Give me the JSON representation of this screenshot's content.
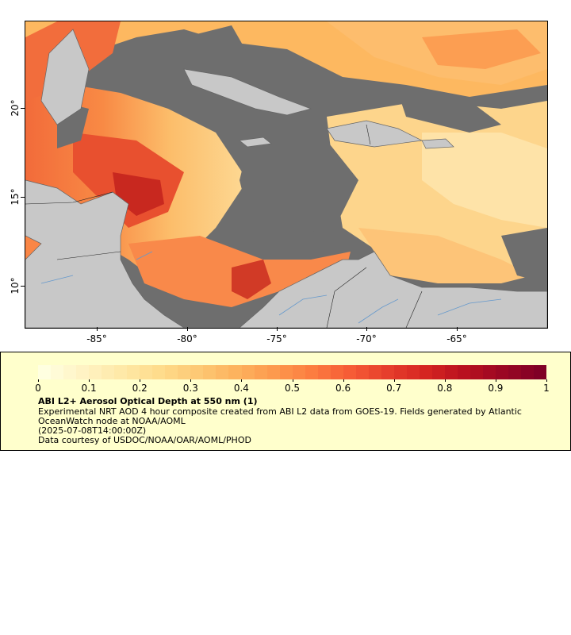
{
  "map": {
    "type": "choropleth raster map",
    "region": "Caribbean Sea and Central America",
    "lon_range": [
      -89,
      -60
    ],
    "lat_range": [
      8,
      25
    ],
    "lon_ticks": [
      "-85°",
      "-80°",
      "-75°",
      "-70°",
      "-65°"
    ],
    "lat_ticks": [
      "20°",
      "15°",
      "10°"
    ],
    "colors": {
      "land": "#c8c8c8",
      "no_data": "#6e6e6e",
      "coastline": "#666666",
      "rivers": "#6699cc",
      "borders": "#000000"
    }
  },
  "legend": {
    "colorbar_labels": [
      "0",
      "0.1",
      "0.2",
      "0.3",
      "0.4",
      "0.5",
      "0.6",
      "0.7",
      "0.8",
      "0.9",
      "1"
    ],
    "colorbar_colors": [
      "#ffffe0",
      "#fff3c4",
      "#fee9a8",
      "#fedc8c",
      "#fdc975",
      "#fdb35e",
      "#fd9a4e",
      "#fc7d40",
      "#f65c36",
      "#e63e2c",
      "#d52421",
      "#b9111f",
      "#9b0723",
      "#800026"
    ],
    "title": "ABI L2+ Aerosol Optical Depth at 550 nm (1)",
    "description": "Experimental NRT AOD 4 hour composite created from ABI L2 data from GOES-19. Fields generated by Atlantic OceanWatch node at NOAA/AOML",
    "date": "(2025-07-08T14:00:00Z)",
    "credit": "Data courtesy of USDOC/NOAA/OAR/AOML/PHOD"
  }
}
